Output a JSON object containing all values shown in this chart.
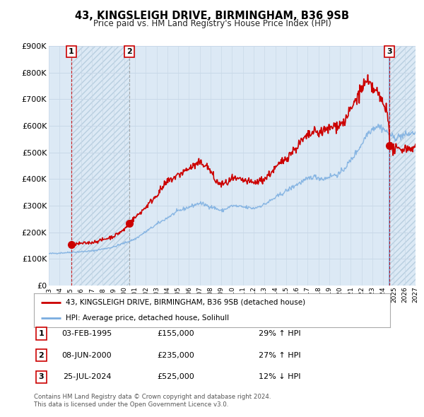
{
  "title1": "43, KINGSLEIGH DRIVE, BIRMINGHAM, B36 9SB",
  "title2": "Price paid vs. HM Land Registry's House Price Index (HPI)",
  "background_color": "#ffffff",
  "plot_bg_color": "#dce9f5",
  "hatch_bg_color": "#d0dff0",
  "grid_color": "#c8d8e8",
  "red_line_color": "#cc0000",
  "blue_line_color": "#7aade0",
  "sale_marker_color": "#cc0000",
  "yticks": [
    0,
    100000,
    200000,
    300000,
    400000,
    500000,
    600000,
    700000,
    800000,
    900000
  ],
  "ytick_labels": [
    "£0",
    "£100K",
    "£200K",
    "£300K",
    "£400K",
    "£500K",
    "£600K",
    "£700K",
    "£800K",
    "£900K"
  ],
  "xmin_year": 1993.0,
  "xmax_year": 2027.0,
  "ymin": 0,
  "ymax": 900000,
  "xtick_years": [
    1993,
    1994,
    1995,
    1996,
    1997,
    1998,
    1999,
    2000,
    2001,
    2002,
    2003,
    2004,
    2005,
    2006,
    2007,
    2008,
    2009,
    2010,
    2011,
    2012,
    2013,
    2014,
    2015,
    2016,
    2017,
    2018,
    2019,
    2020,
    2021,
    2022,
    2023,
    2024,
    2025,
    2026,
    2027
  ],
  "sale1_year": 1995.09,
  "sale1_price": 155000,
  "sale2_year": 2000.44,
  "sale2_price": 235000,
  "sale3_year": 2024.57,
  "sale3_price": 525000,
  "legend_label1": "43, KINGSLEIGH DRIVE, BIRMINGHAM, B36 9SB (detached house)",
  "legend_label2": "HPI: Average price, detached house, Solihull",
  "table_rows": [
    {
      "num": "1",
      "date": "03-FEB-1995",
      "price": "£155,000",
      "hpi": "29% ↑ HPI"
    },
    {
      "num": "2",
      "date": "08-JUN-2000",
      "price": "£235,000",
      "hpi": "27% ↑ HPI"
    },
    {
      "num": "3",
      "date": "25-JUL-2024",
      "price": "£525,000",
      "hpi": "12% ↓ HPI"
    }
  ],
  "footnote1": "Contains HM Land Registry data © Crown copyright and database right 2024.",
  "footnote2": "This data is licensed under the Open Government Licence v3.0."
}
